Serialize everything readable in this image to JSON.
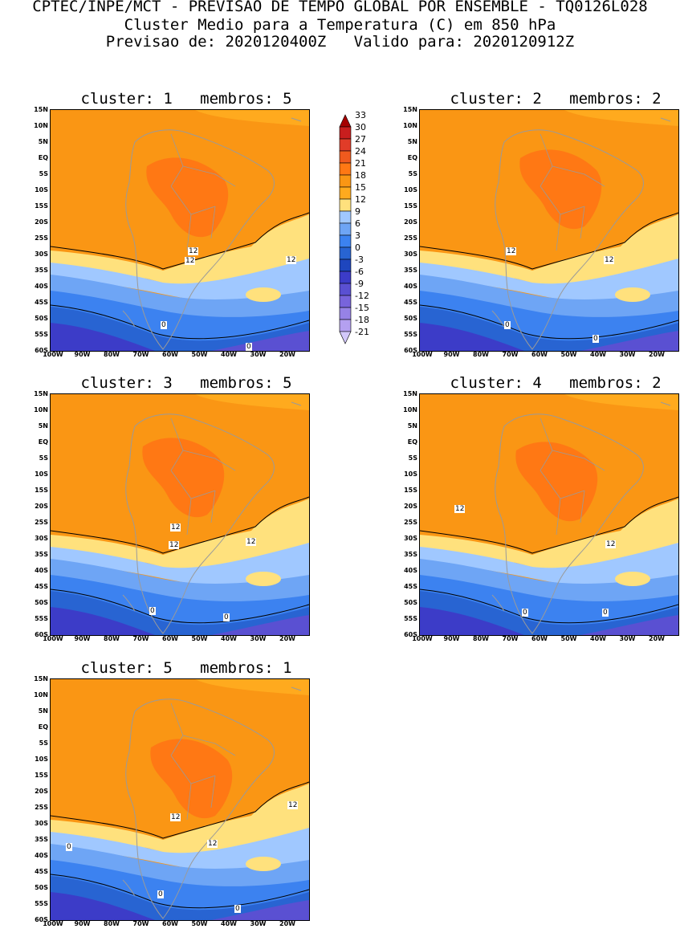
{
  "header": {
    "line1": "CPTEC/INPE/MCT - PREVISAO DE TEMPO GLOBAL POR ENSEMBLE - TQ0126L028",
    "line2": "Cluster Medio para a Temperatura (C) em 850 hPa",
    "line3": "Previsao de: 2020120400Z   Valido para: 2020120912Z"
  },
  "lat_labels": [
    "15N",
    "10N",
    "5N",
    "EQ",
    "5S",
    "10S",
    "15S",
    "20S",
    "25S",
    "30S",
    "35S",
    "40S",
    "45S",
    "50S",
    "55S",
    "60S"
  ],
  "lon_labels": [
    "100W",
    "90W",
    "80W",
    "70W",
    "60W",
    "50W",
    "40W",
    "30W",
    "20W"
  ],
  "panels": [
    {
      "title": "cluster: 1   membros: 5",
      "contour_labels": [
        "12",
        "12",
        "12",
        "0",
        "0"
      ]
    },
    {
      "title": "cluster: 2   membros: 2",
      "contour_labels": [
        "12",
        "12",
        "0",
        "0"
      ]
    },
    {
      "title": "cluster: 3   membros: 5",
      "contour_labels": [
        "12",
        "12",
        "12",
        "0",
        "0"
      ]
    },
    {
      "title": "cluster: 4   membros: 2",
      "contour_labels": [
        "12",
        "12",
        "0",
        "0"
      ]
    },
    {
      "title": "cluster: 5   membros: 1",
      "contour_labels": [
        "12",
        "12",
        "12",
        "0",
        "0",
        "0"
      ]
    }
  ],
  "colorbar": {
    "labels": [
      "33",
      "30",
      "27",
      "24",
      "21",
      "18",
      "15",
      "12",
      "9",
      "6",
      "3",
      "0",
      "-3",
      "-6",
      "-9",
      "-12",
      "-15",
      "-18",
      "-21"
    ],
    "colors": [
      "#a50000",
      "#c81e1e",
      "#e13c28",
      "#f05a1e",
      "#ff7814",
      "#fa9614",
      "#ffaa1e",
      "#ffe17d",
      "#a0c8ff",
      "#6ea5f5",
      "#3c82f0",
      "#2864d2",
      "#1e46be",
      "#3c3cc8",
      "#5a50d2",
      "#7864dc",
      "#9682e6",
      "#b4a0f0",
      "#d2c8fa"
    ]
  }
}
